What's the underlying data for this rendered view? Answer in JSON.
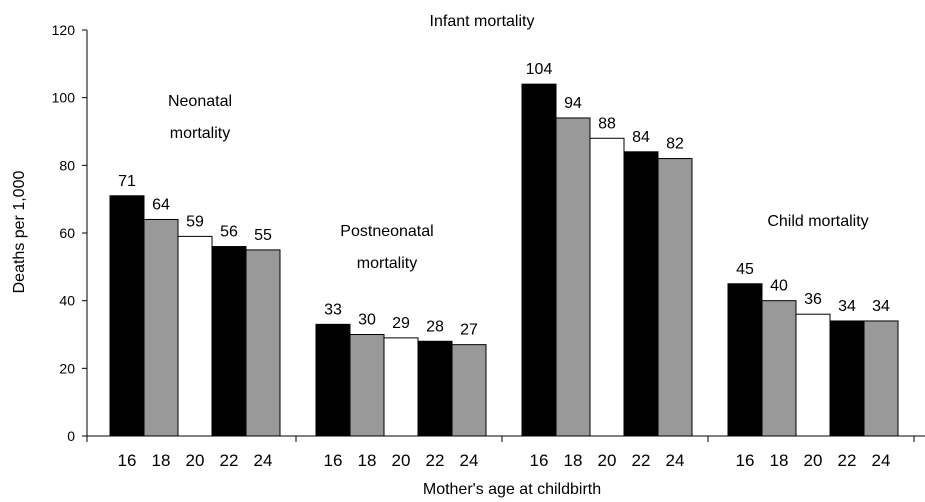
{
  "chart_data": {
    "type": "bar",
    "xlabel": "Mother's age at childbirth",
    "ylabel": "Deaths per 1,000",
    "ylim": [
      0,
      120
    ],
    "yticks": [
      "0",
      "20",
      "40",
      "60",
      "80",
      "100",
      "120"
    ],
    "bar_colors": [
      "#000000",
      "#999999",
      "#ffffff",
      "#000000",
      "#999999"
    ],
    "groups": [
      {
        "label_lines": [
          "Neonatal",
          "mortality"
        ],
        "categories": [
          "16",
          "18",
          "20",
          "22",
          "24"
        ],
        "values": [
          71,
          64,
          59,
          56,
          55
        ],
        "labels": [
          "71",
          "64",
          "59",
          "56",
          "55"
        ]
      },
      {
        "label_lines": [
          "Postneonatal",
          "mortality"
        ],
        "categories": [
          "16",
          "18",
          "20",
          "22",
          "24"
        ],
        "values": [
          33,
          30,
          29,
          28,
          27
        ],
        "labels": [
          "33",
          "30",
          "29",
          "28",
          "27"
        ]
      },
      {
        "label_lines": [
          "Infant mortality"
        ],
        "categories": [
          "16",
          "18",
          "20",
          "22",
          "24"
        ],
        "values": [
          104,
          94,
          88,
          84,
          82
        ],
        "labels": [
          "104",
          "94",
          "88",
          "84",
          "82"
        ]
      },
      {
        "label_lines": [
          "Child mortality"
        ],
        "categories": [
          "16",
          "18",
          "20",
          "22",
          "24"
        ],
        "values": [
          45,
          40,
          36,
          34,
          34
        ],
        "labels": [
          "45",
          "40",
          "36",
          "34",
          "34"
        ]
      }
    ]
  }
}
